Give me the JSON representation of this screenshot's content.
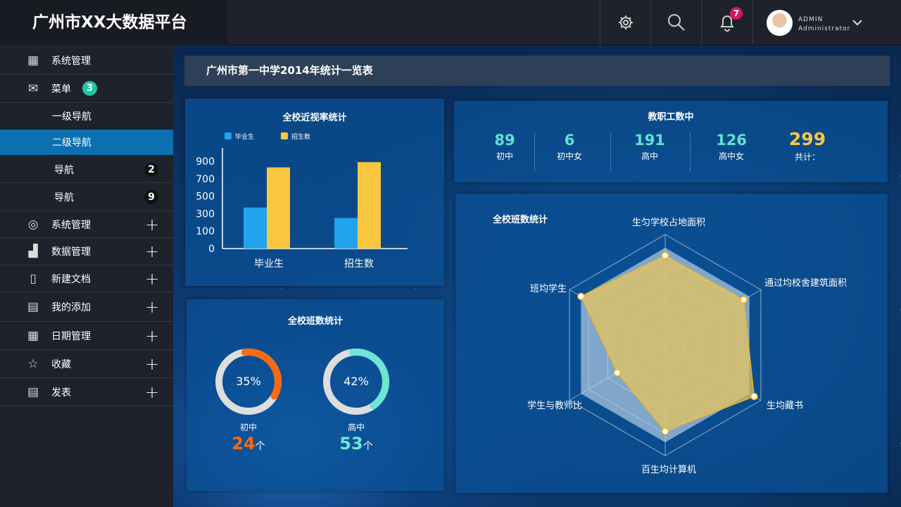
{
  "header": {
    "title": "广州市XX大数据平台",
    "notifications": "7",
    "user_name": "ADMIN",
    "user_role": "Administrator"
  },
  "sidebar": {
    "items": [
      {
        "label": "系统管理",
        "icon": "grid-icon"
      },
      {
        "label": "菜单",
        "icon": "mail-icon",
        "badge": "3"
      },
      {
        "label": "一级导航"
      },
      {
        "label": "二级导航",
        "active": true
      },
      {
        "label": "导航",
        "count": "2"
      },
      {
        "label": "导航",
        "count": "9"
      },
      {
        "label": "系统管理",
        "icon": "compass-icon"
      },
      {
        "label": "数据管理",
        "icon": "bar-chart-icon"
      },
      {
        "label": "新建文档",
        "icon": "document-icon"
      },
      {
        "label": "我的添加",
        "icon": "document-add-icon"
      },
      {
        "label": "日期管理",
        "icon": "calendar-icon"
      },
      {
        "label": "收藏",
        "icon": "star-icon"
      },
      {
        "label": "发表",
        "icon": "clipboard-icon"
      }
    ]
  },
  "page_title": "广州市第一中学2014年统计一览表",
  "staff": {
    "title": "教职工数中",
    "items": [
      {
        "value": "89",
        "label": "初中"
      },
      {
        "value": "6",
        "label": "初中女"
      },
      {
        "value": "191",
        "label": "高中"
      },
      {
        "value": "126",
        "label": "高中女"
      },
      {
        "value": "299",
        "label": "共计："
      }
    ]
  },
  "donuts": {
    "title": "全校班数统计",
    "items": [
      {
        "percent": 35,
        "percent_label": "35%",
        "label": "初中",
        "count": "24",
        "unit": "个",
        "color": "#ff6a10"
      },
      {
        "percent": 42,
        "percent_label": "42%",
        "label": "高中",
        "count": "53",
        "unit": "个",
        "color": "#6ee6d6"
      }
    ]
  },
  "colors": {
    "accent": "#0b6fb0",
    "blue": "#22a3ee",
    "yellow": "#fbc640"
  },
  "chart_data": [
    {
      "type": "bar",
      "title": "全校近视率统计",
      "categories": [
        "毕业生",
        "招生数"
      ],
      "yticks": [
        0,
        100,
        300,
        500,
        700,
        900
      ],
      "series": [
        {
          "name": "毕业生",
          "color": "#22a3ee",
          "values": [
            370,
            250
          ]
        },
        {
          "name": "招生数",
          "color": "#fbc640",
          "values": [
            830,
            890
          ]
        }
      ],
      "legend": "top-left"
    },
    {
      "type": "radar",
      "title": "全校班数统计",
      "axes": [
        "生匀学校占地面积",
        "通过均校舍建筑面积",
        "生均藏书",
        "百生均计算机",
        "学生与教师比",
        "班均学生"
      ],
      "max": 100,
      "series": [
        {
          "color": "#b4cce6",
          "values": [
            88,
            88,
            88,
            88,
            88,
            88
          ]
        },
        {
          "color": "#e6c45c",
          "values": [
            81,
            82,
            93,
            78,
            50,
            88
          ]
        }
      ]
    }
  ]
}
